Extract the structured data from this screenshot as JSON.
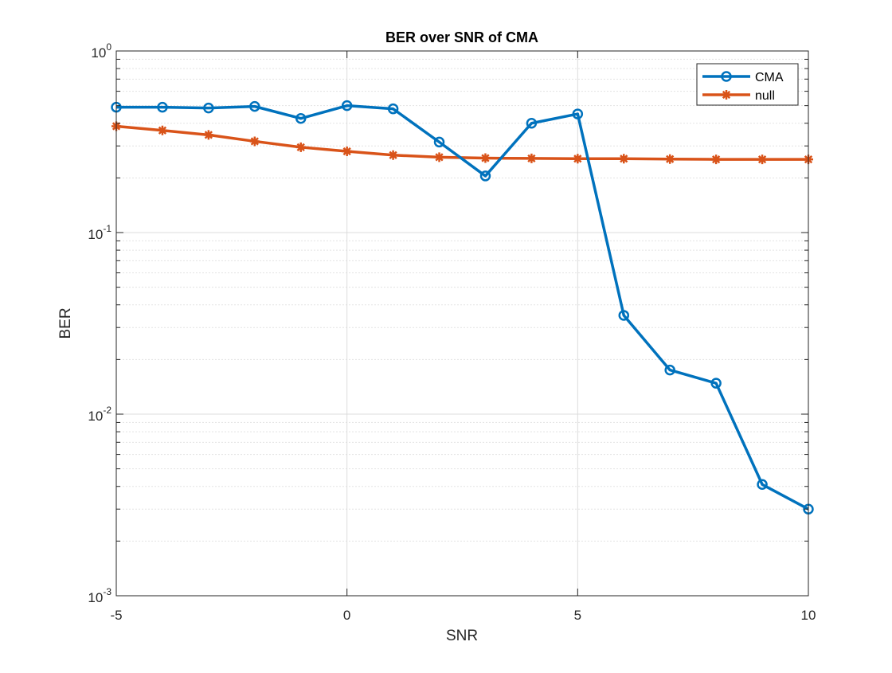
{
  "chart_data": {
    "type": "line",
    "title": "BER over SNR of CMA",
    "xlabel": "SNR",
    "ylabel": "BER",
    "xlim": [
      -5,
      10
    ],
    "ylim": [
      0.001,
      1
    ],
    "yscale": "log",
    "grid": true,
    "minor_grid": true,
    "x_ticks": [
      "-5",
      "0",
      "5",
      "10"
    ],
    "y_ticks": [
      {
        "base": "10",
        "exp": "-3"
      },
      {
        "base": "10",
        "exp": "-2"
      },
      {
        "base": "10",
        "exp": "-1"
      },
      {
        "base": "10",
        "exp": "0"
      }
    ],
    "legend_position": "top-right",
    "x": [
      -5,
      -4,
      -3,
      -2,
      -1,
      0,
      1,
      2,
      3,
      4,
      5,
      6,
      7,
      8,
      9,
      10
    ],
    "series": [
      {
        "name": "CMA",
        "color": "#0072BD",
        "marker": "circle",
        "values": [
          0.49,
          0.49,
          0.485,
          0.495,
          0.425,
          0.5,
          0.48,
          0.315,
          0.205,
          0.4,
          0.45,
          0.035,
          0.0175,
          0.0148,
          0.0041,
          0.003
        ]
      },
      {
        "name": "null",
        "color": "#D95319",
        "marker": "star",
        "values": [
          0.385,
          0.365,
          0.345,
          0.318,
          0.295,
          0.28,
          0.267,
          0.26,
          0.257,
          0.256,
          0.255,
          0.255,
          0.254,
          0.253,
          0.253,
          0.253
        ]
      }
    ]
  }
}
